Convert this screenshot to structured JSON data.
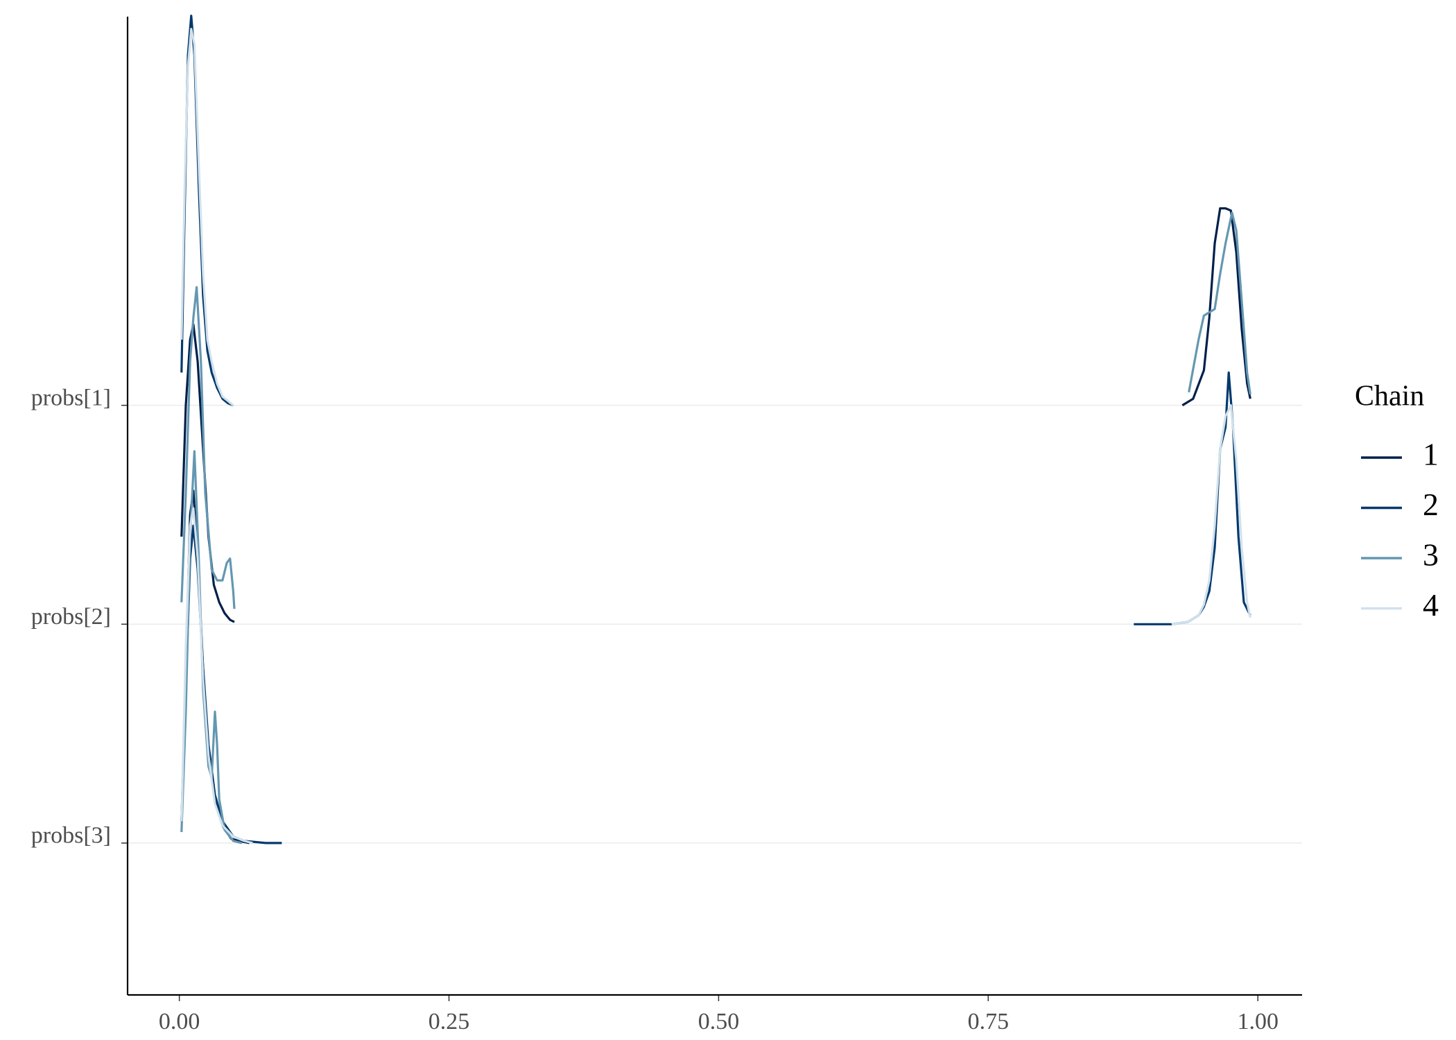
{
  "chart_data": {
    "type": "ridgeline",
    "legend_title": "Chain",
    "legend_position": "right",
    "xlim": [
      -0.048,
      1.041
    ],
    "xticks": [
      {
        "value": 0,
        "label": "0.00"
      },
      {
        "value": 0.25,
        "label": "0.25"
      },
      {
        "value": 0.5,
        "label": "0.50"
      },
      {
        "value": 0.75,
        "label": "0.75"
      },
      {
        "value": 1,
        "label": "1.00"
      }
    ],
    "ylim": [
      0.306,
      4.776
    ],
    "yticks": [
      {
        "value": 3,
        "label": "probs[1]"
      },
      {
        "value": 2,
        "label": "probs[2]"
      },
      {
        "value": 1,
        "label": "probs[3]"
      }
    ],
    "grid": true,
    "chains": [
      {
        "name": "1",
        "color": "#011f4b",
        "curves": [
          {
            "ridge": 0,
            "x": [
              0.93,
              0.94,
              0.95,
              0.955,
              0.96,
              0.965,
              0.97,
              0.975,
              0.98,
              0.985,
              0.99,
              0.993
            ],
            "values": [
              0,
              0.03,
              0.16,
              0.4,
              0.74,
              0.9,
              0.9,
              0.89,
              0.7,
              0.35,
              0.1,
              0.03
            ]
          },
          {
            "ridge": 1,
            "x": [
              0.002,
              0.006,
              0.01,
              0.013,
              0.017,
              0.022,
              0.027,
              0.032,
              0.037,
              0.042,
              0.047,
              0.051
            ],
            "values": [
              0.4,
              1.0,
              1.3,
              1.37,
              1.2,
              0.8,
              0.4,
              0.18,
              0.1,
              0.05,
              0.02,
              0.01
            ]
          },
          {
            "ridge": 2,
            "x": [
              0.002,
              0.006,
              0.01,
              0.013,
              0.017,
              0.022,
              0.027,
              0.033,
              0.04,
              0.048,
              0.055,
              0.065
            ],
            "values": [
              0.1,
              0.8,
              1.5,
              1.61,
              1.3,
              0.8,
              0.4,
              0.2,
              0.08,
              0.02,
              0.01,
              0
            ]
          }
        ]
      },
      {
        "name": "2",
        "color": "#03396c",
        "curves": [
          {
            "ridge": 0,
            "x": [
              0.002,
              0.005,
              0.008,
              0.011,
              0.014,
              0.018,
              0.022,
              0.026,
              0.03,
              0.035,
              0.04,
              0.045,
              0.05
            ],
            "values": [
              0.15,
              0.9,
              1.6,
              1.78,
              1.6,
              1.0,
              0.5,
              0.25,
              0.15,
              0.08,
              0.03,
              0.01,
              0
            ]
          },
          {
            "ridge": 1,
            "x": [
              0.885,
              0.9,
              0.92,
              0.935,
              0.945,
              0.95,
              0.955,
              0.96,
              0.965,
              0.97,
              0.973,
              0.977,
              0.982,
              0.987,
              0.993
            ],
            "values": [
              0,
              0,
              0,
              0.01,
              0.04,
              0.08,
              0.15,
              0.35,
              0.8,
              0.9,
              1.15,
              0.9,
              0.4,
              0.1,
              0.04
            ]
          },
          {
            "ridge": 2,
            "x": [
              0.002,
              0.006,
              0.01,
              0.013,
              0.017,
              0.022,
              0.027,
              0.033,
              0.04,
              0.05,
              0.06,
              0.07,
              0.08,
              0.095
            ],
            "values": [
              0.1,
              0.7,
              1.3,
              1.45,
              1.25,
              0.8,
              0.45,
              0.22,
              0.1,
              0.03,
              0.01,
              0.005,
              0,
              0
            ]
          }
        ]
      },
      {
        "name": "3",
        "color": "#6497b1",
        "curves": [
          {
            "ridge": 0,
            "x": [
              0.936,
              0.945,
              0.95,
              0.96,
              0.965,
              0.97,
              0.976,
              0.98,
              0.985,
              0.99,
              0.993
            ],
            "values": [
              0.06,
              0.3,
              0.41,
              0.44,
              0.6,
              0.74,
              0.88,
              0.8,
              0.48,
              0.15,
              0.05
            ]
          },
          {
            "ridge": 1,
            "x": [
              0.002,
              0.006,
              0.01,
              0.013,
              0.016,
              0.02,
              0.024,
              0.03,
              0.035,
              0.04,
              0.044,
              0.047,
              0.05,
              0.051
            ],
            "values": [
              0.1,
              0.6,
              1.2,
              1.4,
              1.54,
              1.2,
              0.6,
              0.25,
              0.2,
              0.2,
              0.28,
              0.3,
              0.15,
              0.07
            ]
          },
          {
            "ridge": 2,
            "x": [
              0.002,
              0.006,
              0.01,
              0.014,
              0.018,
              0.022,
              0.027,
              0.03,
              0.033,
              0.035,
              0.037,
              0.042,
              0.05,
              0.058
            ],
            "values": [
              0.05,
              0.6,
              1.4,
              1.79,
              1.3,
              0.7,
              0.35,
              0.3,
              0.6,
              0.45,
              0.2,
              0.06,
              0.01,
              0
            ]
          }
        ]
      },
      {
        "name": "4",
        "color": "#d1e1ec",
        "curves": [
          {
            "ridge": 0,
            "x": [
              0.002,
              0.005,
              0.008,
              0.011,
              0.014,
              0.018,
              0.022,
              0.026,
              0.03,
              0.035,
              0.04,
              0.045,
              0.05
            ],
            "values": [
              0.3,
              1.0,
              1.55,
              1.72,
              1.65,
              1.1,
              0.6,
              0.3,
              0.2,
              0.1,
              0.04,
              0.02,
              0
            ]
          },
          {
            "ridge": 1,
            "x": [
              0.92,
              0.935,
              0.945,
              0.95,
              0.955,
              0.96,
              0.965,
              0.97,
              0.975,
              0.98,
              0.985,
              0.99,
              0.993
            ],
            "values": [
              0,
              0.01,
              0.04,
              0.09,
              0.2,
              0.45,
              0.8,
              0.95,
              1.0,
              0.75,
              0.35,
              0.1,
              0.03
            ]
          },
          {
            "ridge": 2,
            "x": [
              0.002,
              0.006,
              0.01,
              0.013,
              0.017,
              0.022,
              0.027,
              0.033,
              0.04,
              0.05,
              0.06,
              0.068
            ],
            "values": [
              0.1,
              0.9,
              1.45,
              1.53,
              1.3,
              0.75,
              0.4,
              0.18,
              0.08,
              0.03,
              0.01,
              0
            ]
          }
        ]
      }
    ]
  }
}
